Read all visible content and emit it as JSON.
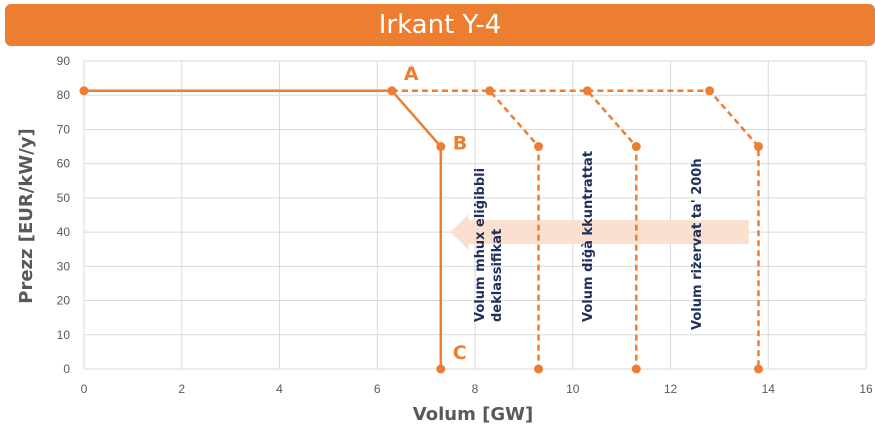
{
  "chart_data": {
    "type": "line",
    "title": "Irkant Y-4",
    "xlabel": "Volum [GW]",
    "ylabel": "Prezz [EUR/kW/y]",
    "xlim": [
      0,
      16
    ],
    "ylim": [
      0,
      90
    ],
    "x_ticks": [
      0,
      2,
      4,
      6,
      8,
      10,
      12,
      14,
      16
    ],
    "y_ticks": [
      0,
      10,
      20,
      30,
      40,
      50,
      60,
      70,
      80,
      90
    ],
    "grid": true,
    "color": "#ed7d31",
    "series": [
      {
        "style": "solid",
        "points": [
          [
            0,
            81.3
          ],
          [
            6.3,
            81.3
          ],
          [
            7.3,
            65
          ],
          [
            7.3,
            0
          ]
        ]
      },
      {
        "style": "dashed",
        "points": [
          [
            6.3,
            81.3
          ],
          [
            8.3,
            81.3
          ],
          [
            9.3,
            65
          ],
          [
            9.3,
            0
          ]
        ]
      },
      {
        "style": "dashed",
        "points": [
          [
            8.3,
            81.3
          ],
          [
            10.3,
            81.3
          ],
          [
            11.3,
            65
          ],
          [
            11.3,
            0
          ]
        ]
      },
      {
        "style": "dashed",
        "points": [
          [
            10.3,
            81.3
          ],
          [
            12.8,
            81.3
          ],
          [
            13.8,
            65
          ],
          [
            13.8,
            0
          ]
        ]
      }
    ],
    "point_labels": [
      {
        "text": "A",
        "x": 6.3,
        "y": 81.3
      },
      {
        "text": "B",
        "x": 7.3,
        "y": 65
      },
      {
        "text": "C",
        "x": 7.3,
        "y": 0
      }
    ],
    "annotations": [
      {
        "lines": [
          "Volum mhux eliġibbli",
          "deklassifikat"
        ]
      },
      {
        "lines": [
          "Volum diġà kkuntrattat"
        ]
      },
      {
        "lines": [
          "Volum riżervat ta' 200h"
        ]
      }
    ],
    "arrow": {
      "direction": "left",
      "from_x": 13.6,
      "to_x": 7.5,
      "y": 40,
      "color": "#fbe0cf"
    }
  }
}
